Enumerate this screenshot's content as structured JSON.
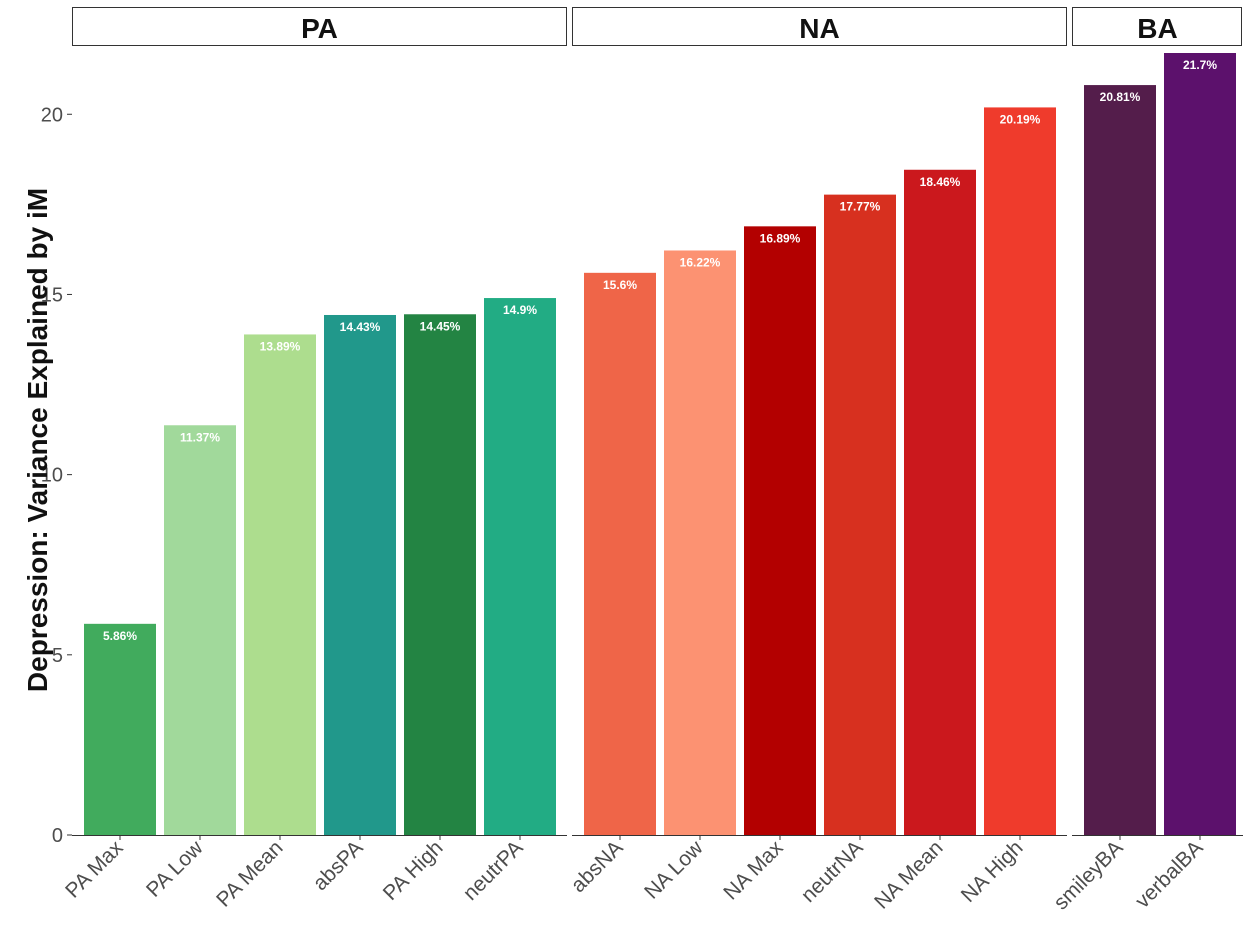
{
  "chart_data": {
    "type": "bar",
    "ylabel": "Depression: Variance Explained by iM",
    "xlabel": "",
    "ylim": [
      0,
      21.7
    ],
    "yticks": [
      0,
      5,
      10,
      15,
      20
    ],
    "grid": false,
    "facets": [
      {
        "title": "PA",
        "categories": [
          "PA Max",
          "PA Low",
          "PA Mean",
          "absPA",
          "PA High",
          "neutrPA"
        ],
        "values": [
          5.86,
          11.37,
          13.89,
          14.43,
          14.45,
          14.9
        ],
        "labels": [
          "5.86%",
          "11.37%",
          "13.89%",
          "14.43%",
          "14.45%",
          "14.9%"
        ],
        "colors": [
          "#41ab5d",
          "#a1d99b",
          "#addd8e",
          "#21988b",
          "#238443",
          "#22ac84"
        ]
      },
      {
        "title": "NA",
        "categories": [
          "absNA",
          "NA Low",
          "NA Max",
          "neutrNA",
          "NA Mean",
          "NA High"
        ],
        "values": [
          15.6,
          16.22,
          16.89,
          17.77,
          18.46,
          20.19
        ],
        "labels": [
          "15.6%",
          "16.22%",
          "16.89%",
          "17.77%",
          "18.46%",
          "20.19%"
        ],
        "colors": [
          "#ef6548",
          "#fc9272",
          "#b30000",
          "#d7301f",
          "#cb181d",
          "#ef3b2c"
        ]
      },
      {
        "title": "BA",
        "categories": [
          "smileyBA",
          "verbalBA"
        ],
        "values": [
          20.81,
          21.7
        ],
        "labels": [
          "20.81%",
          "21.7%"
        ],
        "colors": [
          "#541d4b",
          "#5c116c"
        ]
      }
    ]
  }
}
